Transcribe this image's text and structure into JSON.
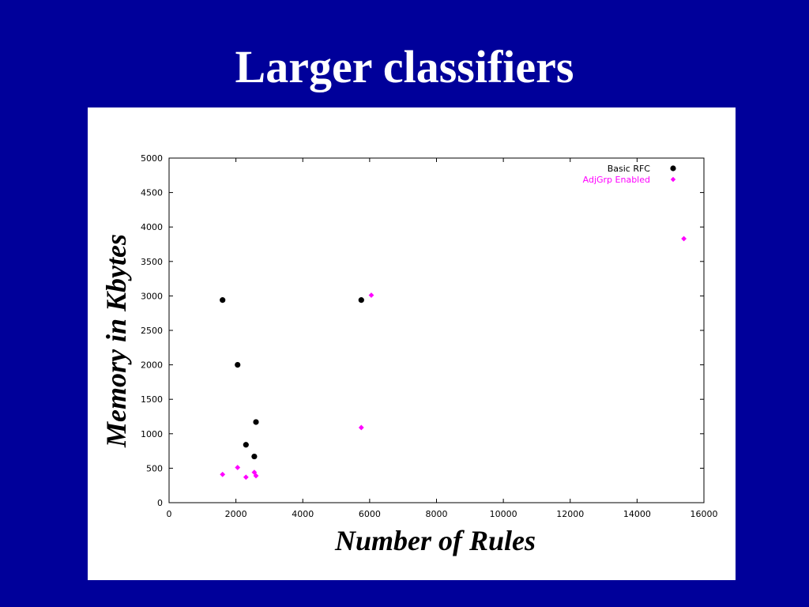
{
  "slide": {
    "title": "Larger classifiers"
  },
  "colors": {
    "background": "#00009a",
    "panel": "#ffffff",
    "basic_rfc": "#000000",
    "adjgrp_enabled": "#ff00ff"
  },
  "chart_data": {
    "type": "scatter",
    "xlabel": "Number of Rules",
    "ylabel": "Memory in Kbytes",
    "xlim": [
      0,
      16000
    ],
    "ylim": [
      0,
      5000
    ],
    "x_ticks": [
      "0",
      "2000",
      "4000",
      "6000",
      "8000",
      "10000",
      "12000",
      "14000",
      "16000"
    ],
    "y_ticks": [
      "0",
      "500",
      "1000",
      "1500",
      "2000",
      "2500",
      "3000",
      "3500",
      "4000",
      "4500",
      "5000"
    ],
    "grid": false,
    "legend_position": "top-right",
    "series": [
      {
        "name": "Basic RFC",
        "color": "#000000",
        "marker": "circle",
        "points": [
          {
            "x": 1600,
            "y": 2940
          },
          {
            "x": 2050,
            "y": 2000
          },
          {
            "x": 2300,
            "y": 840
          },
          {
            "x": 2550,
            "y": 670
          },
          {
            "x": 2600,
            "y": 1170
          },
          {
            "x": 5750,
            "y": 2940
          }
        ]
      },
      {
        "name": "AdjGrp Enabled",
        "color": "#ff00ff",
        "marker": "diamond",
        "points": [
          {
            "x": 1600,
            "y": 410
          },
          {
            "x": 2050,
            "y": 510
          },
          {
            "x": 2300,
            "y": 370
          },
          {
            "x": 2550,
            "y": 440
          },
          {
            "x": 2600,
            "y": 390
          },
          {
            "x": 5750,
            "y": 1090
          },
          {
            "x": 6050,
            "y": 3010
          },
          {
            "x": 15400,
            "y": 3830
          }
        ]
      }
    ]
  }
}
